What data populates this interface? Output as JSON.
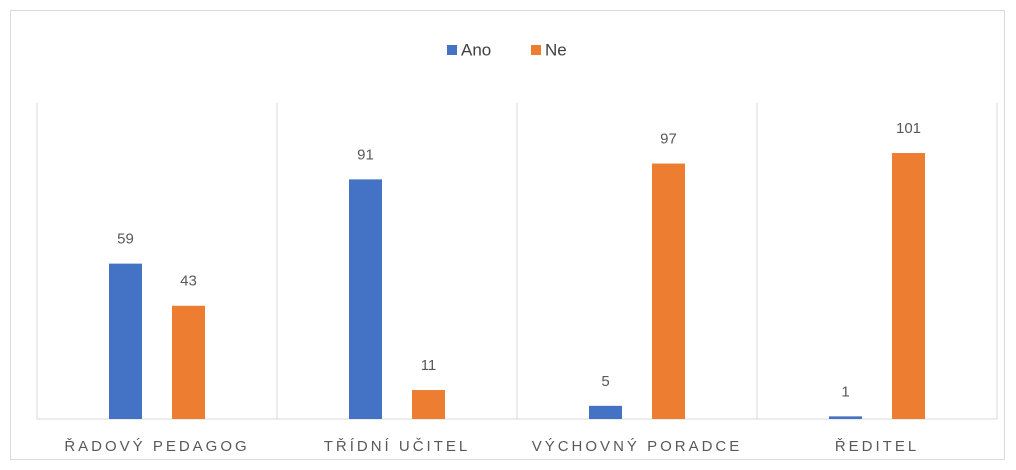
{
  "chart_data": {
    "type": "bar",
    "categories": [
      "ŘADOVÝ PEDAGOG",
      "TŘÍDNÍ UČITEL",
      "VÝCHOVNÝ PORADCE",
      "ŘEDITEL"
    ],
    "series": [
      {
        "name": "Ano",
        "color": "#4472c4",
        "values": [
          59,
          91,
          5,
          1
        ]
      },
      {
        "name": "Ne",
        "color": "#ed7d31",
        "values": [
          43,
          11,
          97,
          101
        ]
      }
    ],
    "ylim": [
      0,
      120
    ],
    "legend": "top"
  }
}
